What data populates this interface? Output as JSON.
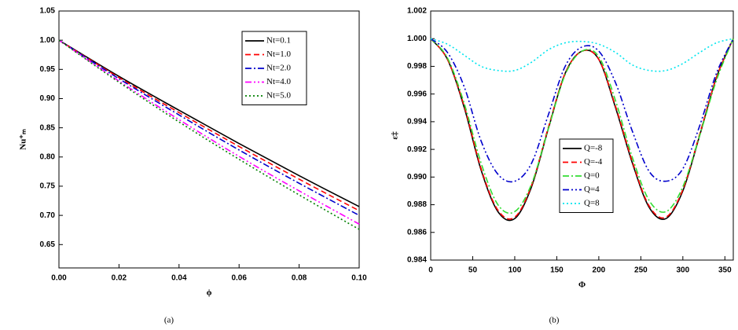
{
  "chart_data": [
    {
      "type": "line",
      "caption": "(a)",
      "xlabel": "ϕ",
      "ylabel": "Nu⁺ₘ",
      "x": [
        0,
        0.02,
        0.04,
        0.06,
        0.08,
        0.1
      ],
      "xlim": [
        0,
        0.1
      ],
      "xticks": [
        {
          "value": 0,
          "label": "0.00"
        },
        {
          "value": 0.02,
          "label": "0.02"
        },
        {
          "value": 0.04,
          "label": "0.04"
        },
        {
          "value": 0.06,
          "label": "0.06"
        },
        {
          "value": 0.08,
          "label": "0.08"
        },
        {
          "value": 0.1,
          "label": "0.10"
        }
      ],
      "ylim": [
        0.61,
        1.05
      ],
      "yticks": [
        0.65,
        {
          "value": 0.7,
          "label": "0.70"
        },
        0.75,
        {
          "value": 0.8,
          "label": "0.80"
        },
        0.85,
        {
          "value": 0.9,
          "label": "0.90"
        },
        0.95,
        {
          "value": 1,
          "label": "1.00"
        },
        1.05
      ],
      "legend": "upper right",
      "series": [
        {
          "name": "Nt=0.1",
          "color": "#000000",
          "dash": "solid",
          "values": [
            1.0,
            0.938,
            0.88,
            0.823,
            0.768,
            0.715
          ]
        },
        {
          "name": "Nt=1.0",
          "color": "#ff0000",
          "dash": "dash",
          "values": [
            1.0,
            0.936,
            0.876,
            0.818,
            0.762,
            0.708
          ]
        },
        {
          "name": "Nt=2.0",
          "color": "#0000cc",
          "dash": "dashdot",
          "values": [
            1.0,
            0.934,
            0.872,
            0.812,
            0.755,
            0.7
          ]
        },
        {
          "name": "Nt=4.0",
          "color": "#ff00ff",
          "dash": "dashdotdot",
          "values": [
            1.0,
            0.93,
            0.864,
            0.801,
            0.742,
            0.685
          ]
        },
        {
          "name": "Nt=5.0",
          "color": "#008000",
          "dash": "dot",
          "values": [
            1.0,
            0.928,
            0.86,
            0.796,
            0.735,
            0.676
          ]
        }
      ]
    },
    {
      "type": "line",
      "caption": "(b)",
      "xlabel": "Φ",
      "ylabel": "ε‡",
      "x": [
        0,
        20,
        40,
        60,
        80,
        100,
        120,
        140,
        160,
        180,
        200,
        220,
        240,
        260,
        280,
        300,
        320,
        340,
        360
      ],
      "xlim": [
        0,
        360
      ],
      "xticks": [
        0,
        50,
        100,
        150,
        200,
        250,
        300,
        350
      ],
      "ylim": [
        0.984,
        1.002
      ],
      "yticks": [
        0.984,
        0.986,
        0.988,
        {
          "value": 0.99,
          "label": "0.990"
        },
        0.992,
        0.994,
        0.996,
        0.998,
        {
          "value": 1,
          "label": "1.000"
        },
        1.002
      ],
      "legend": "center left",
      "series": [
        {
          "name": "Q=-8",
          "color": "#000000",
          "dash": "solid",
          "values": [
            1.0,
            0.9985,
            0.995,
            0.9905,
            0.9875,
            0.987,
            0.9893,
            0.9935,
            0.9975,
            0.9991,
            0.9985,
            0.995,
            0.991,
            0.9878,
            0.987,
            0.989,
            0.993,
            0.9972,
            1.0
          ]
        },
        {
          "name": "Q=-4",
          "color": "#ff0000",
          "dash": "dash",
          "values": [
            1.0,
            0.9985,
            0.9951,
            0.9906,
            0.9876,
            0.9871,
            0.9894,
            0.9936,
            0.9975,
            0.9991,
            0.9985,
            0.9951,
            0.9911,
            0.9879,
            0.9871,
            0.9891,
            0.9931,
            0.9972,
            1.0
          ]
        },
        {
          "name": "Q=0",
          "color": "#33dd33",
          "dash": "dashdot",
          "values": [
            1.0,
            0.9986,
            0.9953,
            0.991,
            0.988,
            0.9875,
            0.9895,
            0.9935,
            0.9974,
            0.9991,
            0.9987,
            0.9955,
            0.9914,
            0.9883,
            0.9875,
            0.9893,
            0.993,
            0.997,
            1.0
          ]
        },
        {
          "name": "Q=4",
          "color": "#0000cc",
          "dash": "dashdotdot",
          "values": [
            1.0,
            0.999,
            0.9965,
            0.9926,
            0.9902,
            0.9897,
            0.991,
            0.9945,
            0.998,
            0.9994,
            0.9991,
            0.9968,
            0.9933,
            0.9904,
            0.9897,
            0.9906,
            0.9937,
            0.9975,
            1.0
          ]
        },
        {
          "name": "Q=8",
          "color": "#00e5ee",
          "dash": "dot",
          "values": [
            1.0,
            0.9996,
            0.9988,
            0.998,
            0.9977,
            0.9977,
            0.9983,
            0.9992,
            0.9997,
            0.9998,
            0.9996,
            0.999,
            0.9981,
            0.9977,
            0.9977,
            0.9982,
            0.999,
            0.9997,
            1.0
          ]
        }
      ]
    }
  ]
}
